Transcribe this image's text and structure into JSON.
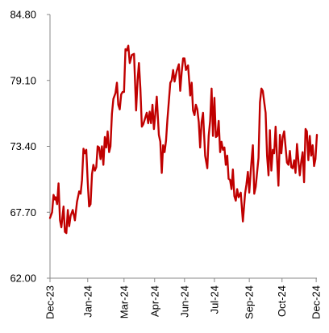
{
  "chart_data": {
    "type": "line",
    "title": "",
    "xlabel": "",
    "ylabel": "",
    "ylim": [
      62.0,
      84.8
    ],
    "y_ticks": [
      "62.00",
      "67.70",
      "73.40",
      "79.10",
      "84.80"
    ],
    "x_ticks": [
      "Dec-23",
      "Jan-24",
      "Mar-24",
      "Apr-24",
      "Jun-24",
      "Jul-24",
      "Sep-24",
      "Oct-24",
      "Dec-24"
    ],
    "x_tick_dates": [
      "2023-12-01",
      "2024-01-23",
      "2024-03-14",
      "2024-04-26",
      "2024-06-07",
      "2024-07-19",
      "2024-09-06",
      "2024-10-22",
      "2024-12-09"
    ],
    "x_range": [
      "2023-12-01",
      "2024-12-10"
    ],
    "grid": false,
    "legend": "none",
    "series": [
      {
        "color": "#c00000",
        "x": [
          "2023-12-01",
          "2023-12-04",
          "2023-12-06",
          "2023-12-08",
          "2023-12-09",
          "2023-12-11",
          "2023-12-13",
          "2023-12-15",
          "2023-12-17",
          "2023-12-20",
          "2023-12-22",
          "2023-12-24",
          "2023-12-26",
          "2023-12-28",
          "2023-12-30",
          "2024-01-02",
          "2024-01-05",
          "2024-01-08",
          "2024-01-11",
          "2024-01-13",
          "2024-01-15",
          "2024-01-17",
          "2024-01-19",
          "2024-01-21",
          "2024-01-23",
          "2024-01-25",
          "2024-01-27",
          "2024-01-29",
          "2024-01-31",
          "2024-02-02",
          "2024-02-04",
          "2024-02-06",
          "2024-02-08",
          "2024-02-10",
          "2024-02-12",
          "2024-02-14",
          "2024-02-16",
          "2024-02-18",
          "2024-02-20",
          "2024-02-22",
          "2024-02-24",
          "2024-02-26",
          "2024-02-28",
          "2024-03-02",
          "2024-03-04",
          "2024-03-06",
          "2024-03-08",
          "2024-03-10",
          "2024-03-12",
          "2024-03-14",
          "2024-03-16",
          "2024-03-18",
          "2024-03-20",
          "2024-03-22",
          "2024-03-25",
          "2024-03-28",
          "2024-03-31",
          "2024-04-02",
          "2024-04-04",
          "2024-04-06",
          "2024-04-08",
          "2024-04-10",
          "2024-04-12",
          "2024-04-15",
          "2024-04-17",
          "2024-04-19",
          "2024-04-21",
          "2024-04-23",
          "2024-04-25",
          "2024-04-27",
          "2024-04-29",
          "2024-05-02",
          "2024-05-04",
          "2024-05-06",
          "2024-05-08",
          "2024-05-10",
          "2024-05-12",
          "2024-05-14",
          "2024-05-16",
          "2024-05-18",
          "2024-05-20",
          "2024-05-22",
          "2024-05-24",
          "2024-05-27",
          "2024-05-30",
          "2024-06-01",
          "2024-06-03",
          "2024-06-05",
          "2024-06-07",
          "2024-06-09",
          "2024-06-12",
          "2024-06-15",
          "2024-06-17",
          "2024-06-19",
          "2024-06-21",
          "2024-06-23",
          "2024-06-25",
          "2024-06-27",
          "2024-06-29",
          "2024-07-01",
          "2024-07-03",
          "2024-07-06",
          "2024-07-09",
          "2024-07-11",
          "2024-07-13",
          "2024-07-15",
          "2024-07-17",
          "2024-07-19",
          "2024-07-21",
          "2024-07-23",
          "2024-07-25",
          "2024-07-27",
          "2024-07-29",
          "2024-07-31",
          "2024-08-02",
          "2024-08-04",
          "2024-08-06",
          "2024-08-08",
          "2024-08-10",
          "2024-08-12",
          "2024-08-14",
          "2024-08-16",
          "2024-08-18",
          "2024-08-20",
          "2024-08-22",
          "2024-08-25",
          "2024-08-28",
          "2024-08-31",
          "2024-09-02",
          "2024-09-04",
          "2024-09-06",
          "2024-09-08",
          "2024-09-10",
          "2024-09-11",
          "2024-09-13",
          "2024-09-15",
          "2024-09-17",
          "2024-09-19",
          "2024-09-21",
          "2024-09-23",
          "2024-09-25",
          "2024-09-27",
          "2024-09-29",
          "2024-10-01",
          "2024-10-03",
          "2024-10-05",
          "2024-10-07",
          "2024-10-09",
          "2024-10-11",
          "2024-10-13",
          "2024-10-15",
          "2024-10-17",
          "2024-10-19",
          "2024-10-21",
          "2024-10-23",
          "2024-10-25",
          "2024-10-27",
          "2024-10-29",
          "2024-10-31",
          "2024-11-02",
          "2024-11-04",
          "2024-11-06",
          "2024-11-08",
          "2024-11-10",
          "2024-11-12",
          "2024-11-14",
          "2024-11-16",
          "2024-11-18",
          "2024-11-20",
          "2024-11-22",
          "2024-11-24",
          "2024-11-26",
          "2024-11-28",
          "2024-11-30",
          "2024-12-02",
          "2024-12-04",
          "2024-12-06",
          "2024-12-08",
          "2024-12-10"
        ],
        "y": [
          67.2,
          67.7,
          69.2,
          68.8,
          69.0,
          68.4,
          70.2,
          67.0,
          66.4,
          68.2,
          66.0,
          65.9,
          67.9,
          66.5,
          67.4,
          67.9,
          67.0,
          68.6,
          69.5,
          69.3,
          70.5,
          73.2,
          72.8,
          73.1,
          70.3,
          68.2,
          68.4,
          71.0,
          71.8,
          71.3,
          71.6,
          73.4,
          73.3,
          72.3,
          73.4,
          71.8,
          74.2,
          73.3,
          74.7,
          72.9,
          73.4,
          76.2,
          77.5,
          78.0,
          78.9,
          77.0,
          76.6,
          77.9,
          78.1,
          78.1,
          81.8,
          81.7,
          82.1,
          80.6,
          81.3,
          81.4,
          76.5,
          79.1,
          80.6,
          78.4,
          75.1,
          75.3,
          75.7,
          76.3,
          75.4,
          76.4,
          75.4,
          77.0,
          74.9,
          76.2,
          77.7,
          74.4,
          73.8,
          71.1,
          73.5,
          72.9,
          73.9,
          75.7,
          77.3,
          78.9,
          79.1,
          80.0,
          79.0,
          79.9,
          80.5,
          78.2,
          79.8,
          81.0,
          81.0,
          80.0,
          80.4,
          77.8,
          78.9,
          76.5,
          76.1,
          77.0,
          76.6,
          75.5,
          73.3,
          75.5,
          76.3,
          72.6,
          71.5,
          74.3,
          75.6,
          78.4,
          74.3,
          77.6,
          74.2,
          74.3,
          75.6,
          72.9,
          73.8,
          73.1,
          73.3,
          71.8,
          72.6,
          70.6,
          70.5,
          69.7,
          71.4,
          69.1,
          68.7,
          69.7,
          69.0,
          69.4,
          66.9,
          69.3,
          70.1,
          71.2,
          69.4,
          71.2,
          72.8,
          73.5,
          69.3,
          69.9,
          71.2,
          72.4,
          77.2,
          78.4,
          78.2,
          77.2,
          76.3,
          72.6,
          70.9,
          74.8,
          71.3,
          73.1,
          72.8,
          75.1,
          72.3,
          70.0,
          74.4,
          72.8,
          74.2,
          74.7,
          73.3,
          72.0,
          71.8,
          73.0,
          71.6,
          71.5,
          72.2,
          71.1,
          73.6,
          72.1,
          70.9,
          72.1,
          72.9,
          70.3,
          74.9,
          74.7,
          72.2,
          74.3,
          72.6,
          73.5,
          71.7,
          72.3,
          74.4
        ]
      }
    ]
  }
}
